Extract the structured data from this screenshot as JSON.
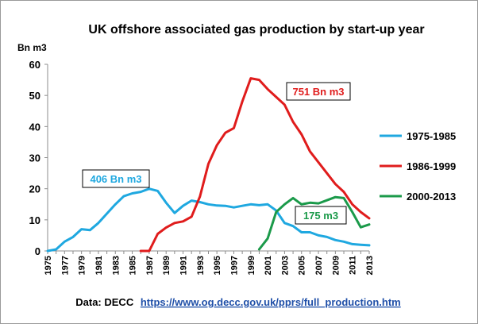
{
  "chart_data": {
    "type": "line",
    "title": "UK offshore associated gas production by start-up year",
    "ylabel": "Bn m3",
    "xlabel": "",
    "ylim": [
      0,
      60
    ],
    "yticks": [
      0,
      10,
      20,
      30,
      40,
      50,
      60
    ],
    "x": [
      1975,
      1976,
      1977,
      1978,
      1979,
      1980,
      1981,
      1982,
      1983,
      1984,
      1985,
      1986,
      1987,
      1988,
      1989,
      1990,
      1991,
      1992,
      1993,
      1994,
      1995,
      1996,
      1997,
      1998,
      1999,
      2000,
      2001,
      2002,
      2003,
      2004,
      2005,
      2006,
      2007,
      2008,
      2009,
      2010,
      2011,
      2012,
      2013
    ],
    "xtick_labels": [
      "1975",
      "1977",
      "1979",
      "1981",
      "1983",
      "1985",
      "1987",
      "1989",
      "1991",
      "1993",
      "1995",
      "1997",
      "1999",
      "2001",
      "2003",
      "2005",
      "2007",
      "2009",
      "2011",
      "2013"
    ],
    "grid": false,
    "legend_position": "right",
    "series": [
      {
        "name": "1975-1985",
        "color": "#1fa8e0",
        "x": [
          1975,
          1976,
          1977,
          1978,
          1979,
          1980,
          1981,
          1982,
          1983,
          1984,
          1985,
          1986,
          1987,
          1988,
          1989,
          1990,
          1991,
          1992,
          1993,
          1994,
          1995,
          1996,
          1997,
          1998,
          1999,
          2000,
          2001,
          2002,
          2003,
          2004,
          2005,
          2006,
          2007,
          2008,
          2009,
          2010,
          2011,
          2012,
          2013
        ],
        "values": [
          0,
          0.5,
          3,
          4.5,
          7,
          6.7,
          9,
          12,
          15,
          17.6,
          18.5,
          19,
          20,
          19.3,
          15.5,
          12.2,
          14.5,
          16.2,
          15.7,
          15,
          14.6,
          14.5,
          14,
          14.5,
          15,
          14.7,
          15,
          13,
          9,
          8,
          6,
          6,
          5,
          4.5,
          3.5,
          3,
          2.2,
          2,
          1.8
        ]
      },
      {
        "name": "1986-1999",
        "color": "#e01c1c",
        "x": [
          1986,
          1987,
          1988,
          1989,
          1990,
          1991,
          1992,
          1993,
          1994,
          1995,
          1996,
          1997,
          1998,
          1999,
          2000,
          2001,
          2002,
          2003,
          2004,
          2005,
          2006,
          2007,
          2008,
          2009,
          2010,
          2011,
          2012,
          2013
        ],
        "values": [
          0,
          0,
          5.5,
          7.5,
          9,
          9.5,
          11,
          17.5,
          28,
          34,
          38,
          39.5,
          48,
          55.5,
          55,
          52,
          49.5,
          47,
          41.5,
          37.5,
          32,
          28.5,
          25,
          21.5,
          19,
          15,
          12.5,
          10.5
        ]
      },
      {
        "name": "2000-2013",
        "color": "#1b9a4a",
        "x": [
          2000,
          2001,
          2002,
          2003,
          2004,
          2005,
          2006,
          2007,
          2008,
          2009,
          2010,
          2011,
          2012,
          2013
        ],
        "values": [
          0.5,
          4,
          12.5,
          15,
          17,
          15,
          15.5,
          15.3,
          16.3,
          17.3,
          17,
          12.5,
          7.6,
          8.5
        ]
      }
    ],
    "annotations": [
      {
        "text": "751 Bn m3",
        "color": "#e01c1c"
      },
      {
        "text": "406 Bn m3",
        "color": "#1fa8e0"
      },
      {
        "text": "175 m3",
        "color": "#1b9a4a"
      }
    ]
  },
  "source": {
    "prefix": "Data: DECC",
    "link": "https://www.og.decc.gov.uk/pprs/full_production.htm"
  }
}
